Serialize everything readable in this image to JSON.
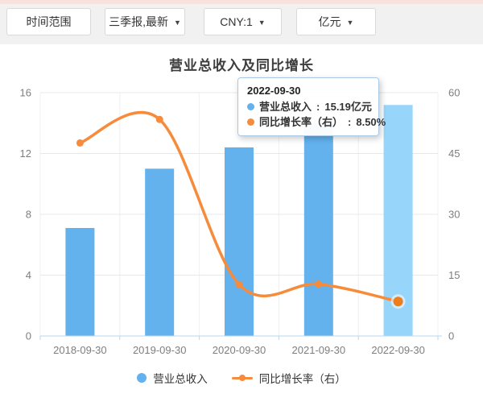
{
  "toolbar": {
    "buttons": [
      {
        "label": "时间范围",
        "has_caret": false
      },
      {
        "label": "三季报,最新",
        "has_caret": true
      },
      {
        "label": "CNY:1",
        "has_caret": true
      },
      {
        "label": "亿元",
        "has_caret": true
      }
    ]
  },
  "header": {
    "title": "营业总收入及同比增长"
  },
  "chart_data": {
    "type": "bar+line",
    "title": "营业总收入及同比增长",
    "categories": [
      "2018-09-30",
      "2019-09-30",
      "2020-09-30",
      "2021-09-30",
      "2022-09-30"
    ],
    "series": [
      {
        "name": "营业总收入",
        "type": "bar",
        "axis": "left",
        "unit": "亿元",
        "values": [
          7.1,
          11.0,
          12.4,
          14.0,
          15.19
        ]
      },
      {
        "name": "同比增长率（右）",
        "type": "line",
        "axis": "right",
        "unit": "%",
        "values": [
          47.6,
          53.4,
          12.7,
          12.8,
          8.5
        ]
      }
    ],
    "left_axis": {
      "min": 0,
      "max": 16,
      "ticks": [
        0,
        4,
        8,
        12,
        16
      ]
    },
    "right_axis": {
      "min": 0,
      "max": 60,
      "ticks": [
        0,
        15,
        30,
        45,
        60
      ]
    },
    "highlighted_index": 4,
    "grid": true,
    "legend_position": "bottom",
    "colors": {
      "bar": "#63b1ed",
      "bar_highlight": "#97d5fa",
      "line": "#f78b3c",
      "point_highlight": "#ee7d1d",
      "axis_line": "#b9d7f0"
    }
  },
  "tooltip": {
    "date": "2022-09-30",
    "rows": [
      {
        "label": "营业总收入",
        "value": "15.19亿元",
        "color": "#63b1ed"
      },
      {
        "label": "同比增长率（右）",
        "value": "8.50%",
        "color": "#f78b3c"
      }
    ]
  },
  "legend": {
    "items": [
      {
        "label": "营业总收入",
        "marker": "circle",
        "color": "#63b1ed"
      },
      {
        "label": "同比增长率（右）",
        "marker": "line",
        "color": "#f78b3c"
      }
    ]
  }
}
